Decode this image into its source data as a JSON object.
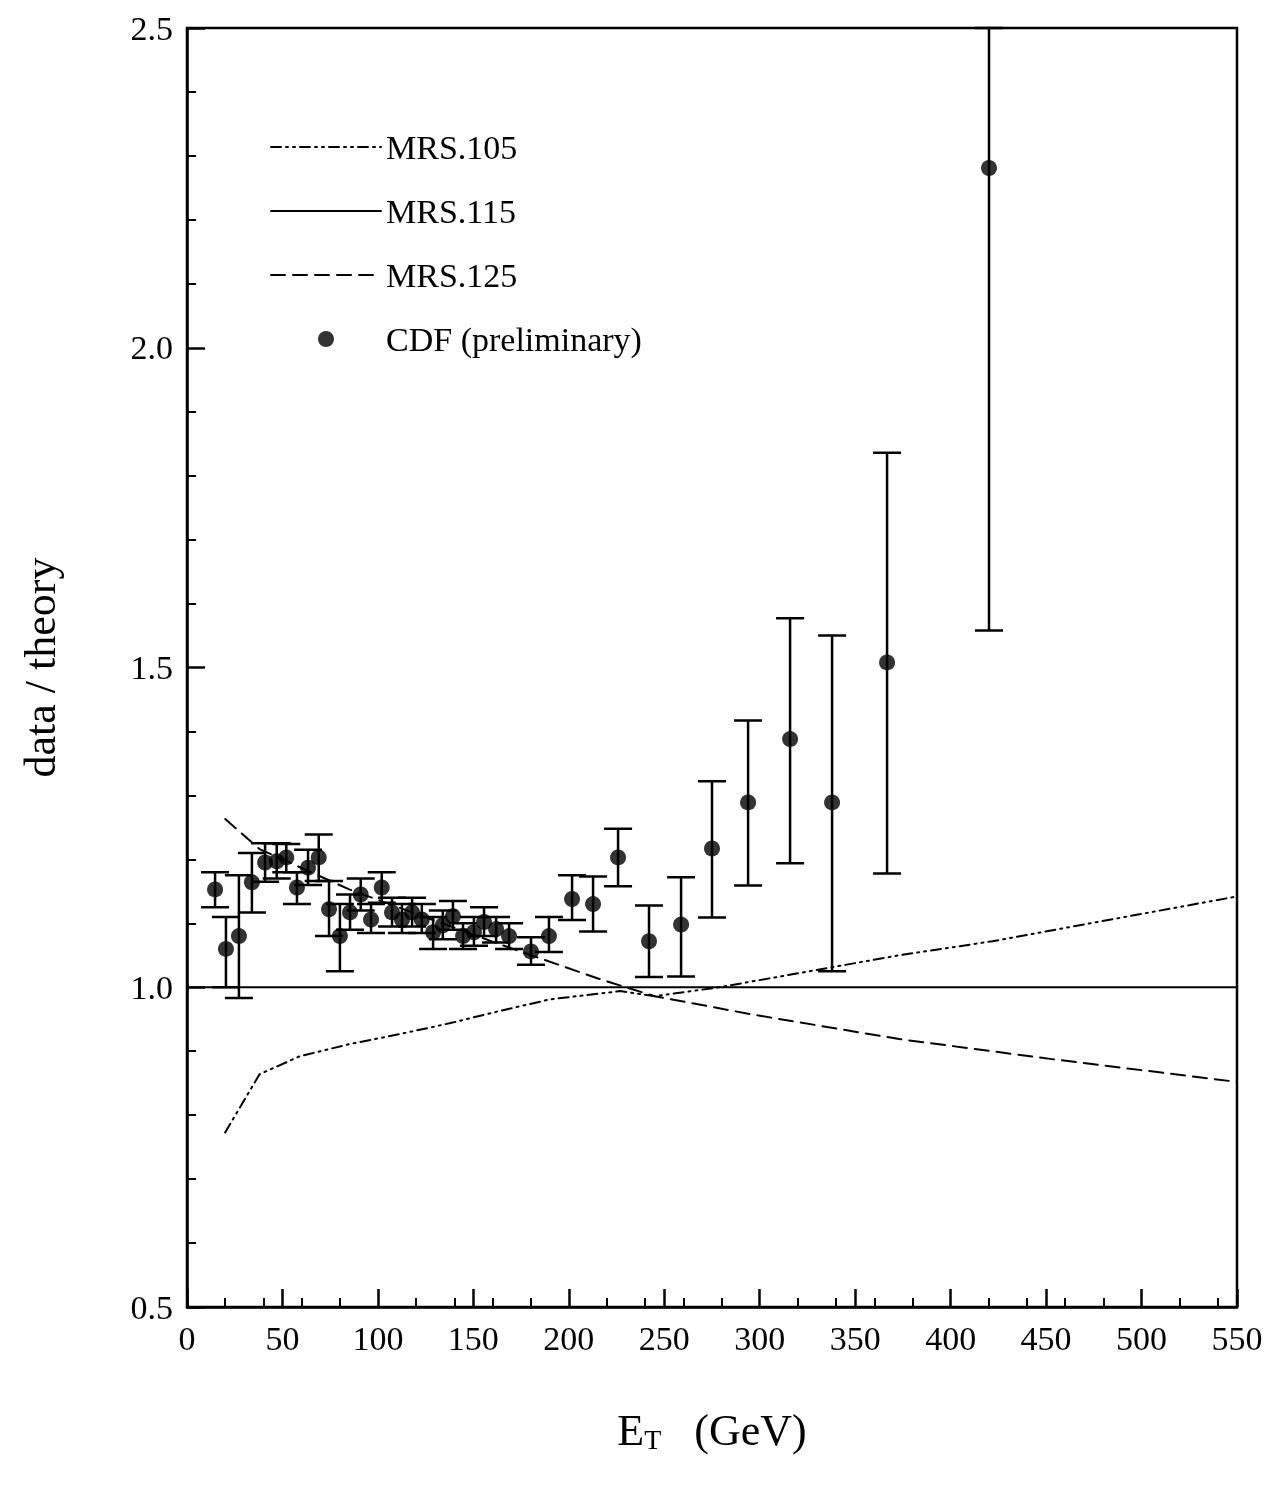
{
  "chart_data": {
    "type": "scatter",
    "xlabel": "E$_{T}$   (GeV)",
    "ylabel": "data / theory",
    "xlim": [
      0,
      550
    ],
    "xticks": [
      0,
      50,
      100,
      150,
      200,
      250,
      300,
      350,
      400,
      450,
      500,
      550
    ],
    "ylim": [
      0.5,
      2.5
    ],
    "yticks": [
      {
        "value": 0.5,
        "label": "0.5"
      },
      {
        "value": 1,
        "label": "1.0"
      },
      {
        "value": 1.5,
        "label": "1.5"
      },
      {
        "value": 2,
        "label": "2.0"
      },
      {
        "value": 2.5,
        "label": "2.5"
      }
    ],
    "grid": false,
    "legend": "top left",
    "series": [
      {
        "name": "MRS.105",
        "type": "line",
        "color": "#000000",
        "line_style": "dotted",
        "marker": "none",
        "x": [
          20,
          38,
          59,
          85,
          112,
          138,
          164,
          190,
          227,
          245,
          279,
          373,
          422,
          550
        ],
        "values": [
          0.773,
          0.864,
          0.892,
          0.911,
          0.927,
          0.944,
          0.963,
          0.981,
          0.994,
          0.986,
          1.0,
          1.05,
          1.072,
          1.142
        ]
      },
      {
        "name": "MRS.115",
        "type": "line",
        "color": "#000000",
        "line_style": "solid",
        "marker": "none",
        "x": [
          0,
          550
        ],
        "values": [
          1.0,
          1.0
        ]
      },
      {
        "name": "MRS.125",
        "type": "line",
        "color": "#000000",
        "line_style": "dashed",
        "marker": "none",
        "x": [
          20,
          38,
          85,
          164,
          216,
          245,
          295,
          373,
          452,
          550
        ],
        "values": [
          1.263,
          1.216,
          1.153,
          1.067,
          1.013,
          0.986,
          0.958,
          0.919,
          0.888,
          0.852
        ]
      },
      {
        "name": "CDF (preliminary)",
        "type": "scatter",
        "color": "#000000",
        "marker": "circle",
        "x": [
          14.7,
          20.4,
          27.2,
          34,
          40.9,
          47,
          52,
          57.6,
          63.4,
          69,
          74.4,
          80.1,
          85.4,
          91,
          96.4,
          102,
          107.4,
          112.6,
          117.9,
          123,
          128.9,
          134,
          139.3,
          144.6,
          150.3,
          155.6,
          161.9,
          168.7,
          180.2,
          189.6,
          201.7,
          212.7,
          225.8,
          242,
          258.8,
          275,
          293.9,
          315.9,
          337.9,
          366.7,
          420.1
        ],
        "values": [
          1.153,
          1.06,
          1.08,
          1.164,
          1.195,
          1.197,
          1.203,
          1.156,
          1.187,
          1.203,
          1.122,
          1.08,
          1.117,
          1.145,
          1.106,
          1.156,
          1.117,
          1.106,
          1.117,
          1.106,
          1.086,
          1.097,
          1.111,
          1.08,
          1.086,
          1.102,
          1.091,
          1.08,
          1.056,
          1.08,
          1.138,
          1.13,
          1.203,
          1.072,
          1.098,
          1.217,
          1.289,
          1.388,
          1.289,
          1.508,
          2.281
        ],
        "errors": [
          [
            1.125,
            1.18
          ],
          [
            1.0,
            1.11
          ],
          [
            0.983,
            1.175
          ],
          [
            1.117,
            1.21
          ],
          [
            1.165,
            1.225
          ],
          [
            1.17,
            1.225
          ],
          [
            1.18,
            1.224
          ],
          [
            1.13,
            1.18
          ],
          [
            1.16,
            1.215
          ],
          [
            1.166,
            1.239
          ],
          [
            1.08,
            1.166
          ],
          [
            1.025,
            1.13
          ],
          [
            1.09,
            1.145
          ],
          [
            1.12,
            1.17
          ],
          [
            1.085,
            1.13
          ],
          [
            1.132,
            1.18
          ],
          [
            1.095,
            1.14
          ],
          [
            1.085,
            1.13
          ],
          [
            1.095,
            1.14
          ],
          [
            1.085,
            1.13
          ],
          [
            1.06,
            1.11
          ],
          [
            1.075,
            1.12
          ],
          [
            1.09,
            1.135
          ],
          [
            1.06,
            1.1
          ],
          [
            1.065,
            1.11
          ],
          [
            1.08,
            1.125
          ],
          [
            1.07,
            1.11
          ],
          [
            1.06,
            1.1
          ],
          [
            1.035,
            1.078
          ],
          [
            1.055,
            1.11
          ],
          [
            1.105,
            1.175
          ],
          [
            1.087,
            1.173
          ],
          [
            1.158,
            1.248
          ],
          [
            1.016,
            1.128
          ],
          [
            1.017,
            1.172
          ],
          [
            1.109,
            1.322
          ],
          [
            1.159,
            1.417
          ],
          [
            1.194,
            1.577
          ],
          [
            1.025,
            1.55
          ],
          [
            1.178,
            1.836
          ],
          [
            1.558,
            2.5
          ]
        ]
      }
    ]
  }
}
